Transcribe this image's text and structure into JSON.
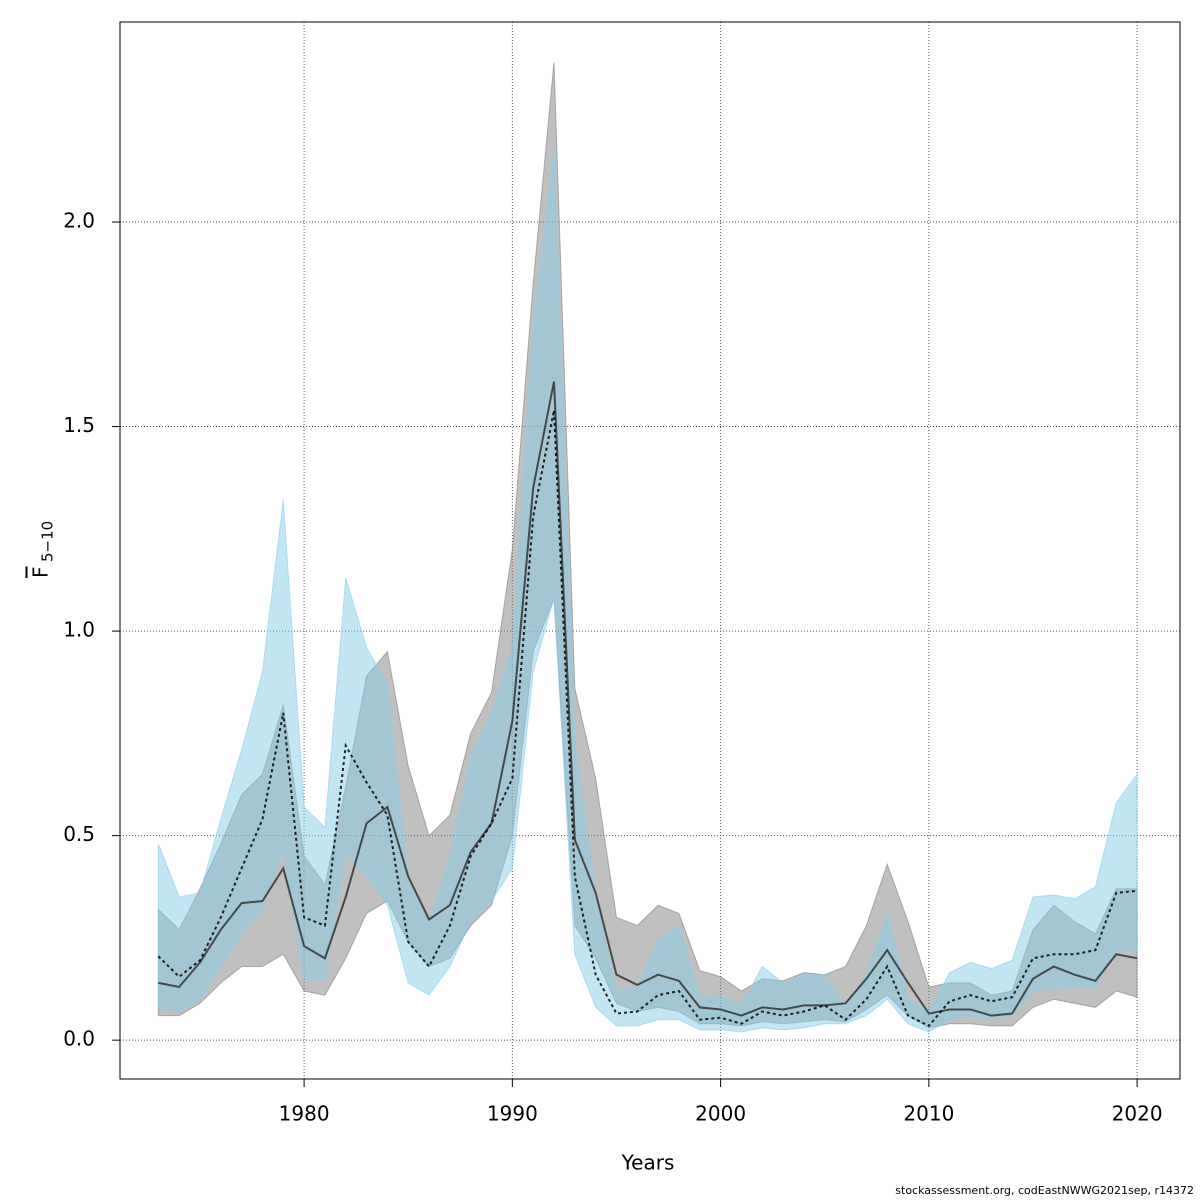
{
  "chart_data": {
    "type": "line",
    "x_label": "Years",
    "y_label": "F",
    "y_label_subscript": "5−10",
    "footer": "stockassessment.org, codEastNWWG2021sep, r14372",
    "x": [
      1973,
      1974,
      1975,
      1976,
      1977,
      1978,
      1979,
      1980,
      1981,
      1982,
      1983,
      1984,
      1985,
      1986,
      1987,
      1988,
      1989,
      1990,
      1991,
      1992,
      1993,
      1994,
      1995,
      1996,
      1997,
      1998,
      1999,
      2000,
      2001,
      2002,
      2003,
      2004,
      2005,
      2006,
      2007,
      2008,
      2009,
      2010,
      2011,
      2012,
      2013,
      2014,
      2015,
      2016,
      2017,
      2018,
      2019,
      2020
    ],
    "series": [
      {
        "color": "#333333",
        "band_color": "#808080",
        "dash": "none",
        "values": [
          0.14,
          0.13,
          0.19,
          0.27,
          0.335,
          0.34,
          0.42,
          0.23,
          0.2,
          0.35,
          0.53,
          0.57,
          0.4,
          0.295,
          0.33,
          0.46,
          0.53,
          0.78,
          1.35,
          1.61,
          0.49,
          0.36,
          0.16,
          0.135,
          0.16,
          0.145,
          0.08,
          0.075,
          0.06,
          0.08,
          0.075,
          0.085,
          0.085,
          0.09,
          0.15,
          0.22,
          0.14,
          0.065,
          0.075,
          0.075,
          0.06,
          0.065,
          0.15,
          0.18,
          0.16,
          0.145,
          0.21,
          0.2
        ],
        "lower": [
          0.06,
          0.06,
          0.09,
          0.14,
          0.18,
          0.18,
          0.21,
          0.12,
          0.11,
          0.2,
          0.31,
          0.34,
          0.24,
          0.18,
          0.2,
          0.28,
          0.33,
          0.5,
          0.95,
          1.08,
          0.28,
          0.2,
          0.09,
          0.07,
          0.08,
          0.07,
          0.04,
          0.04,
          0.035,
          0.045,
          0.04,
          0.045,
          0.05,
          0.045,
          0.075,
          0.11,
          0.06,
          0.03,
          0.04,
          0.04,
          0.035,
          0.035,
          0.08,
          0.1,
          0.09,
          0.08,
          0.12,
          0.105
        ],
        "upper": [
          0.32,
          0.27,
          0.37,
          0.48,
          0.6,
          0.65,
          0.82,
          0.45,
          0.38,
          0.62,
          0.89,
          0.95,
          0.67,
          0.5,
          0.55,
          0.75,
          0.85,
          1.2,
          1.85,
          2.39,
          0.86,
          0.64,
          0.3,
          0.28,
          0.33,
          0.31,
          0.17,
          0.155,
          0.12,
          0.15,
          0.145,
          0.165,
          0.16,
          0.18,
          0.28,
          0.43,
          0.29,
          0.13,
          0.14,
          0.14,
          0.11,
          0.12,
          0.27,
          0.33,
          0.29,
          0.26,
          0.37,
          0.37
        ]
      },
      {
        "color": "#000000",
        "band_color": "#87ceeb",
        "dash": "3,3",
        "values": [
          0.205,
          0.155,
          0.195,
          0.3,
          0.42,
          0.54,
          0.8,
          0.3,
          0.28,
          0.72,
          0.63,
          0.55,
          0.24,
          0.18,
          0.28,
          0.45,
          0.53,
          0.64,
          1.28,
          1.54,
          0.4,
          0.16,
          0.065,
          0.07,
          0.11,
          0.12,
          0.05,
          0.055,
          0.04,
          0.07,
          0.06,
          0.07,
          0.085,
          0.05,
          0.1,
          0.18,
          0.06,
          0.035,
          0.095,
          0.11,
          0.095,
          0.105,
          0.2,
          0.21,
          0.21,
          0.22,
          0.36,
          0.365
        ],
        "lower": [
          0.08,
          0.07,
          0.1,
          0.18,
          0.26,
          0.32,
          0.47,
          0.15,
          0.15,
          0.46,
          0.4,
          0.33,
          0.14,
          0.11,
          0.18,
          0.29,
          0.34,
          0.42,
          0.9,
          1.08,
          0.21,
          0.08,
          0.035,
          0.035,
          0.05,
          0.05,
          0.025,
          0.025,
          0.02,
          0.03,
          0.025,
          0.03,
          0.04,
          0.04,
          0.06,
          0.1,
          0.04,
          0.02,
          0.05,
          0.06,
          0.05,
          0.06,
          0.12,
          0.125,
          0.13,
          0.13,
          0.22,
          0.22
        ],
        "upper": [
          0.48,
          0.35,
          0.36,
          0.54,
          0.71,
          0.9,
          1.32,
          0.57,
          0.52,
          1.13,
          0.96,
          0.87,
          0.4,
          0.29,
          0.45,
          0.69,
          0.8,
          0.96,
          1.75,
          2.18,
          0.73,
          0.35,
          0.12,
          0.13,
          0.245,
          0.28,
          0.105,
          0.11,
          0.085,
          0.18,
          0.14,
          0.16,
          0.16,
          0.08,
          0.16,
          0.31,
          0.1,
          0.07,
          0.165,
          0.19,
          0.175,
          0.195,
          0.35,
          0.355,
          0.345,
          0.375,
          0.58,
          0.65
        ]
      }
    ],
    "xlim": [
      1971.16,
      2022.06
    ],
    "ylim": [
      -0.095,
      2.489
    ],
    "xticks": [
      1980,
      1990,
      2000,
      2010,
      2020
    ],
    "yticks": [
      {
        "value": 0,
        "label": "0.0"
      },
      0.5,
      {
        "value": 1,
        "label": "1.0"
      },
      1.5,
      {
        "value": 2,
        "label": "2.0"
      }
    ],
    "grid": true
  }
}
